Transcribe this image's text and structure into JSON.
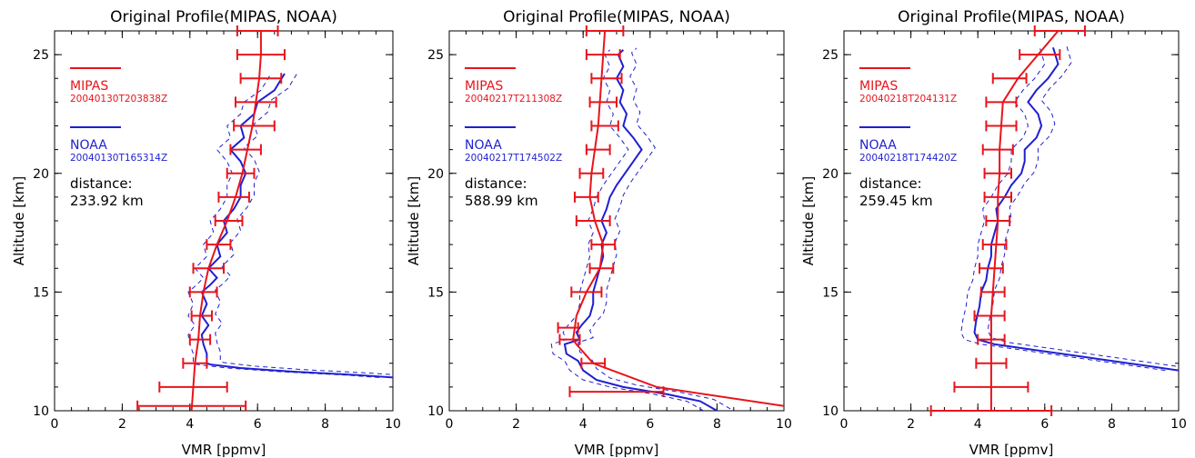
{
  "chart_data": [
    {
      "type": "line",
      "title": "Original Profile(MIPAS, NOAA)",
      "xlabel": "VMR [ppmv]",
      "ylabel": "Altitude [km]",
      "xlim": [
        0,
        10
      ],
      "ylim": [
        10,
        26
      ],
      "xticks": [
        "0",
        "2",
        "4",
        "6",
        "8",
        "10"
      ],
      "yticks": [
        "10",
        "15",
        "20",
        "25"
      ],
      "legend": {
        "mipas_name": "MIPAS",
        "mipas_time": "20040130T203838Z",
        "noaa_name": "NOAA",
        "noaa_time": "20040130T165314Z",
        "distance_label": "distance:",
        "distance_value": "233.92 km"
      },
      "mipas": {
        "color": "#e8141c",
        "points": [
          [
            4.05,
            10
          ],
          [
            4.1,
            11
          ],
          [
            4.15,
            12
          ],
          [
            4.25,
            13
          ],
          [
            4.3,
            14
          ],
          [
            4.4,
            15
          ],
          [
            4.55,
            16
          ],
          [
            4.8,
            17
          ],
          [
            5.1,
            18
          ],
          [
            5.35,
            19
          ],
          [
            5.55,
            20
          ],
          [
            5.7,
            21
          ],
          [
            5.85,
            22
          ],
          [
            5.95,
            23
          ],
          [
            6.05,
            24
          ],
          [
            6.1,
            25
          ],
          [
            6.1,
            26
          ]
        ],
        "errorbars": [
          [
            4.05,
            10.2,
            1.6
          ],
          [
            4.1,
            11,
            1.0
          ],
          [
            4.15,
            12,
            0.35
          ],
          [
            4.3,
            13,
            0.3
          ],
          [
            4.35,
            14,
            0.3
          ],
          [
            4.4,
            15,
            0.4
          ],
          [
            4.55,
            16,
            0.45
          ],
          [
            4.85,
            17,
            0.35
          ],
          [
            5.15,
            18,
            0.4
          ],
          [
            5.3,
            19,
            0.45
          ],
          [
            5.5,
            20,
            0.4
          ],
          [
            5.65,
            21,
            0.45
          ],
          [
            5.9,
            22,
            0.6
          ],
          [
            5.95,
            23,
            0.6
          ],
          [
            6.1,
            24,
            0.6
          ],
          [
            6.1,
            25,
            0.7
          ],
          [
            6.0,
            26,
            0.6
          ]
        ]
      },
      "noaa": {
        "color": "#1f1fd1",
        "points": [
          [
            10,
            11.4
          ],
          [
            9,
            11.5
          ],
          [
            7,
            11.65
          ],
          [
            5.5,
            11.8
          ],
          [
            4.6,
            11.95
          ],
          [
            4.5,
            12
          ],
          [
            4.5,
            12.4
          ],
          [
            4.4,
            12.8
          ],
          [
            4.35,
            13.2
          ],
          [
            4.55,
            13.6
          ],
          [
            4.35,
            14
          ],
          [
            4.5,
            14.5
          ],
          [
            4.35,
            15
          ],
          [
            4.6,
            15.3
          ],
          [
            4.8,
            15.6
          ],
          [
            4.55,
            16
          ],
          [
            4.9,
            16.5
          ],
          [
            4.8,
            17
          ],
          [
            5.1,
            17.5
          ],
          [
            5.0,
            18
          ],
          [
            5.3,
            18.5
          ],
          [
            5.5,
            19
          ],
          [
            5.5,
            19.5
          ],
          [
            5.65,
            20
          ],
          [
            5.5,
            20.5
          ],
          [
            5.2,
            21
          ],
          [
            5.6,
            21.5
          ],
          [
            5.5,
            22
          ],
          [
            5.9,
            22.5
          ],
          [
            6.0,
            23
          ],
          [
            6.5,
            23.5
          ],
          [
            6.8,
            24.2
          ]
        ],
        "band": 0.4
      }
    },
    {
      "type": "line",
      "title": "Original Profile(MIPAS, NOAA)",
      "xlabel": "VMR [ppmv]",
      "ylabel": "Altitude [km]",
      "xlim": [
        0,
        10
      ],
      "ylim": [
        10,
        26
      ],
      "xticks": [
        "0",
        "2",
        "4",
        "6",
        "8",
        "10"
      ],
      "yticks": [
        "10",
        "15",
        "20",
        "25"
      ],
      "legend": {
        "mipas_name": "MIPAS",
        "mipas_time": "20040217T211308Z",
        "noaa_name": "NOAA",
        "noaa_time": "20040217T174502Z",
        "distance_label": "distance:",
        "distance_value": "588.99 km"
      },
      "mipas": {
        "color": "#e8141c",
        "points": [
          [
            10,
            10.2
          ],
          [
            6.2,
            11
          ],
          [
            4.3,
            12
          ],
          [
            3.8,
            12.8
          ],
          [
            3.7,
            13
          ],
          [
            3.8,
            14
          ],
          [
            4.1,
            15
          ],
          [
            4.5,
            16
          ],
          [
            4.6,
            17
          ],
          [
            4.35,
            18
          ],
          [
            4.2,
            19
          ],
          [
            4.25,
            20
          ],
          [
            4.35,
            21
          ],
          [
            4.45,
            22
          ],
          [
            4.5,
            23
          ],
          [
            4.55,
            24
          ],
          [
            4.6,
            25
          ],
          [
            4.65,
            26
          ]
        ],
        "errorbars": [
          [
            5.0,
            10.8,
            1.4
          ],
          [
            4.3,
            12,
            0.35
          ],
          [
            3.6,
            13,
            0.3
          ],
          [
            3.55,
            13.5,
            0.3
          ],
          [
            4.1,
            15,
            0.45
          ],
          [
            4.55,
            16,
            0.35
          ],
          [
            4.6,
            17,
            0.35
          ],
          [
            4.3,
            18,
            0.5
          ],
          [
            4.1,
            19,
            0.35
          ],
          [
            4.25,
            20,
            0.35
          ],
          [
            4.45,
            21,
            0.35
          ],
          [
            4.65,
            22,
            0.4
          ],
          [
            4.6,
            23,
            0.4
          ],
          [
            4.7,
            24,
            0.45
          ],
          [
            4.6,
            25,
            0.5
          ],
          [
            4.65,
            26,
            0.55
          ]
        ]
      },
      "noaa": {
        "color": "#1f1fd1",
        "points": [
          [
            8,
            10
          ],
          [
            7.5,
            10.4
          ],
          [
            6.5,
            10.7
          ],
          [
            5.2,
            11
          ],
          [
            4.4,
            11.3
          ],
          [
            4.0,
            11.7
          ],
          [
            3.85,
            12.1
          ],
          [
            3.5,
            12.4
          ],
          [
            3.45,
            12.8
          ],
          [
            3.9,
            13
          ],
          [
            3.8,
            13.3
          ],
          [
            3.95,
            13.6
          ],
          [
            4.2,
            14
          ],
          [
            4.3,
            14.5
          ],
          [
            4.3,
            15
          ],
          [
            4.4,
            15.5
          ],
          [
            4.5,
            16
          ],
          [
            4.6,
            16.5
          ],
          [
            4.55,
            17
          ],
          [
            4.7,
            17.5
          ],
          [
            4.55,
            18
          ],
          [
            4.7,
            18.5
          ],
          [
            4.8,
            19
          ],
          [
            5.0,
            19.5
          ],
          [
            5.5,
            20.5
          ],
          [
            5.75,
            21
          ],
          [
            5.5,
            21.5
          ],
          [
            5.2,
            22
          ],
          [
            5.3,
            22.5
          ],
          [
            5.1,
            23
          ],
          [
            5.2,
            23.5
          ],
          [
            5.0,
            24
          ],
          [
            5.2,
            24.5
          ],
          [
            5.05,
            25
          ],
          [
            5.2,
            25.2
          ]
        ],
        "band": 0.4
      }
    },
    {
      "type": "line",
      "title": "Original Profile(MIPAS, NOAA)",
      "xlabel": "VMR [ppmv]",
      "ylabel": "Altitude [km]",
      "xlim": [
        0,
        10
      ],
      "ylim": [
        10,
        26
      ],
      "xticks": [
        "0",
        "2",
        "4",
        "6",
        "8",
        "10"
      ],
      "yticks": [
        "10",
        "15",
        "20",
        "25"
      ],
      "legend": {
        "mipas_name": "MIPAS",
        "mipas_time": "20040218T204131Z",
        "noaa_name": "NOAA",
        "noaa_time": "20040218T174420Z",
        "distance_label": "distance:",
        "distance_value": "259.45 km"
      },
      "mipas": {
        "color": "#e8141c",
        "points": [
          [
            4.4,
            10
          ],
          [
            4.4,
            11
          ],
          [
            4.4,
            12
          ],
          [
            4.4,
            13
          ],
          [
            4.4,
            14
          ],
          [
            4.45,
            15
          ],
          [
            4.5,
            16
          ],
          [
            4.55,
            17
          ],
          [
            4.6,
            18
          ],
          [
            4.6,
            19
          ],
          [
            4.65,
            20
          ],
          [
            4.65,
            21
          ],
          [
            4.7,
            22
          ],
          [
            4.75,
            23
          ],
          [
            5.2,
            24
          ],
          [
            5.8,
            25
          ],
          [
            6.4,
            26
          ]
        ],
        "errorbars": [
          [
            4.4,
            10,
            1.8
          ],
          [
            4.4,
            11,
            1.1
          ],
          [
            4.4,
            12,
            0.45
          ],
          [
            4.4,
            13,
            0.4
          ],
          [
            4.35,
            14,
            0.45
          ],
          [
            4.45,
            15,
            0.35
          ],
          [
            4.4,
            16,
            0.35
          ],
          [
            4.5,
            17,
            0.35
          ],
          [
            4.6,
            18,
            0.35
          ],
          [
            4.6,
            19,
            0.4
          ],
          [
            4.6,
            20,
            0.4
          ],
          [
            4.6,
            21,
            0.45
          ],
          [
            4.7,
            22,
            0.45
          ],
          [
            4.7,
            23,
            0.45
          ],
          [
            4.95,
            24,
            0.5
          ],
          [
            5.85,
            25,
            0.6
          ],
          [
            6.45,
            26,
            0.75
          ]
        ]
      },
      "noaa": {
        "color": "#1f1fd1",
        "points": [
          [
            10,
            11.7
          ],
          [
            8.5,
            12.0
          ],
          [
            7,
            12.3
          ],
          [
            5.5,
            12.6
          ],
          [
            4.5,
            12.8
          ],
          [
            4.0,
            13
          ],
          [
            3.9,
            13.3
          ],
          [
            3.95,
            13.8
          ],
          [
            4.05,
            14.4
          ],
          [
            4.1,
            15
          ],
          [
            4.25,
            15.5
          ],
          [
            4.3,
            16
          ],
          [
            4.4,
            16.5
          ],
          [
            4.4,
            17
          ],
          [
            4.5,
            17.5
          ],
          [
            4.6,
            18
          ],
          [
            4.55,
            18.5
          ],
          [
            4.8,
            19
          ],
          [
            5.0,
            19.5
          ],
          [
            5.3,
            20
          ],
          [
            5.4,
            20.5
          ],
          [
            5.4,
            21
          ],
          [
            5.75,
            21.5
          ],
          [
            5.9,
            22
          ],
          [
            5.8,
            22.5
          ],
          [
            5.5,
            23
          ],
          [
            5.75,
            23.5
          ],
          [
            6.1,
            24
          ],
          [
            6.4,
            24.6
          ],
          [
            6.25,
            25.3
          ]
        ],
        "band": 0.4
      }
    }
  ]
}
